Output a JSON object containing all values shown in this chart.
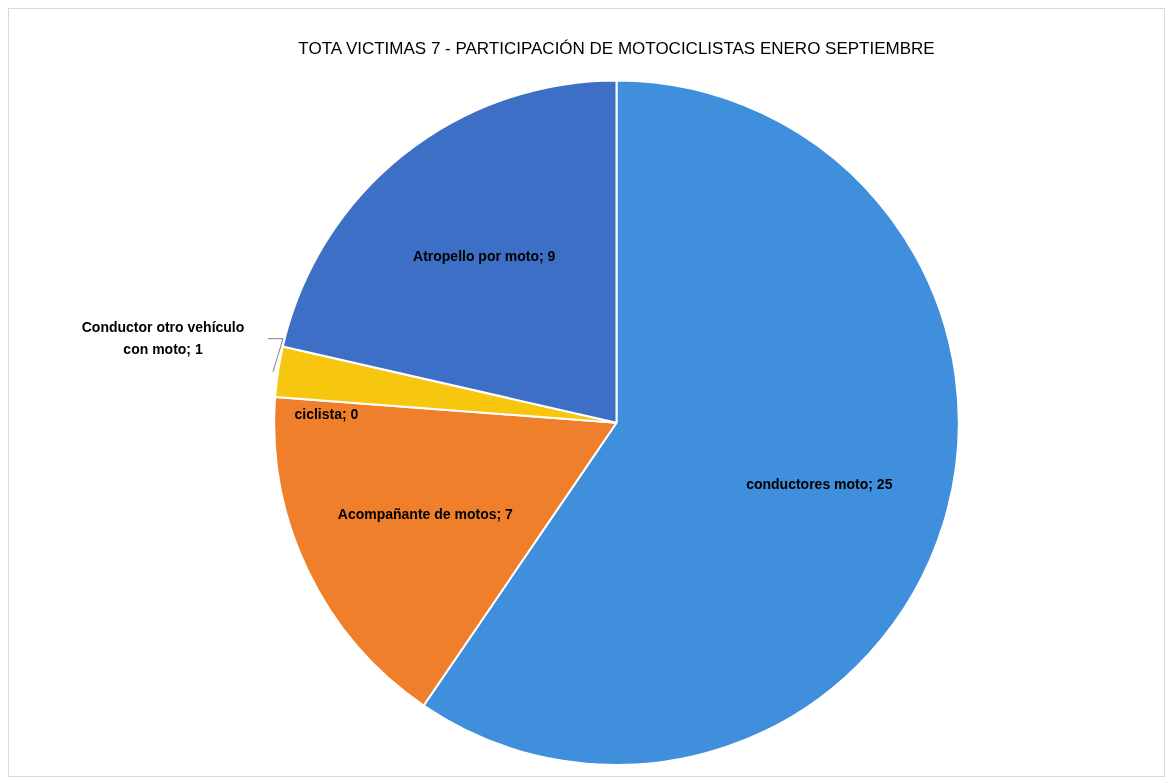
{
  "chart_data": {
    "type": "pie",
    "title": "TOTA VICTIMAS 7 - PARTICIPACIÓN DE MOTOCICLISTAS ENERO SEPTIEMBRE",
    "categories": [
      "conductores moto",
      "Acompañante de motos",
      "ciclista",
      "Conductor otro vehículo con moto",
      "Atropello por moto"
    ],
    "values": [
      25,
      7,
      0,
      1,
      9
    ],
    "value_labels": [
      "; 25",
      "; 7",
      "; 0",
      "; 1",
      "; 9"
    ],
    "colors": [
      "#3f8fdc",
      "#f07f2c",
      "#c9c9c9",
      "#f7c70f",
      "#3d6fc6"
    ]
  }
}
